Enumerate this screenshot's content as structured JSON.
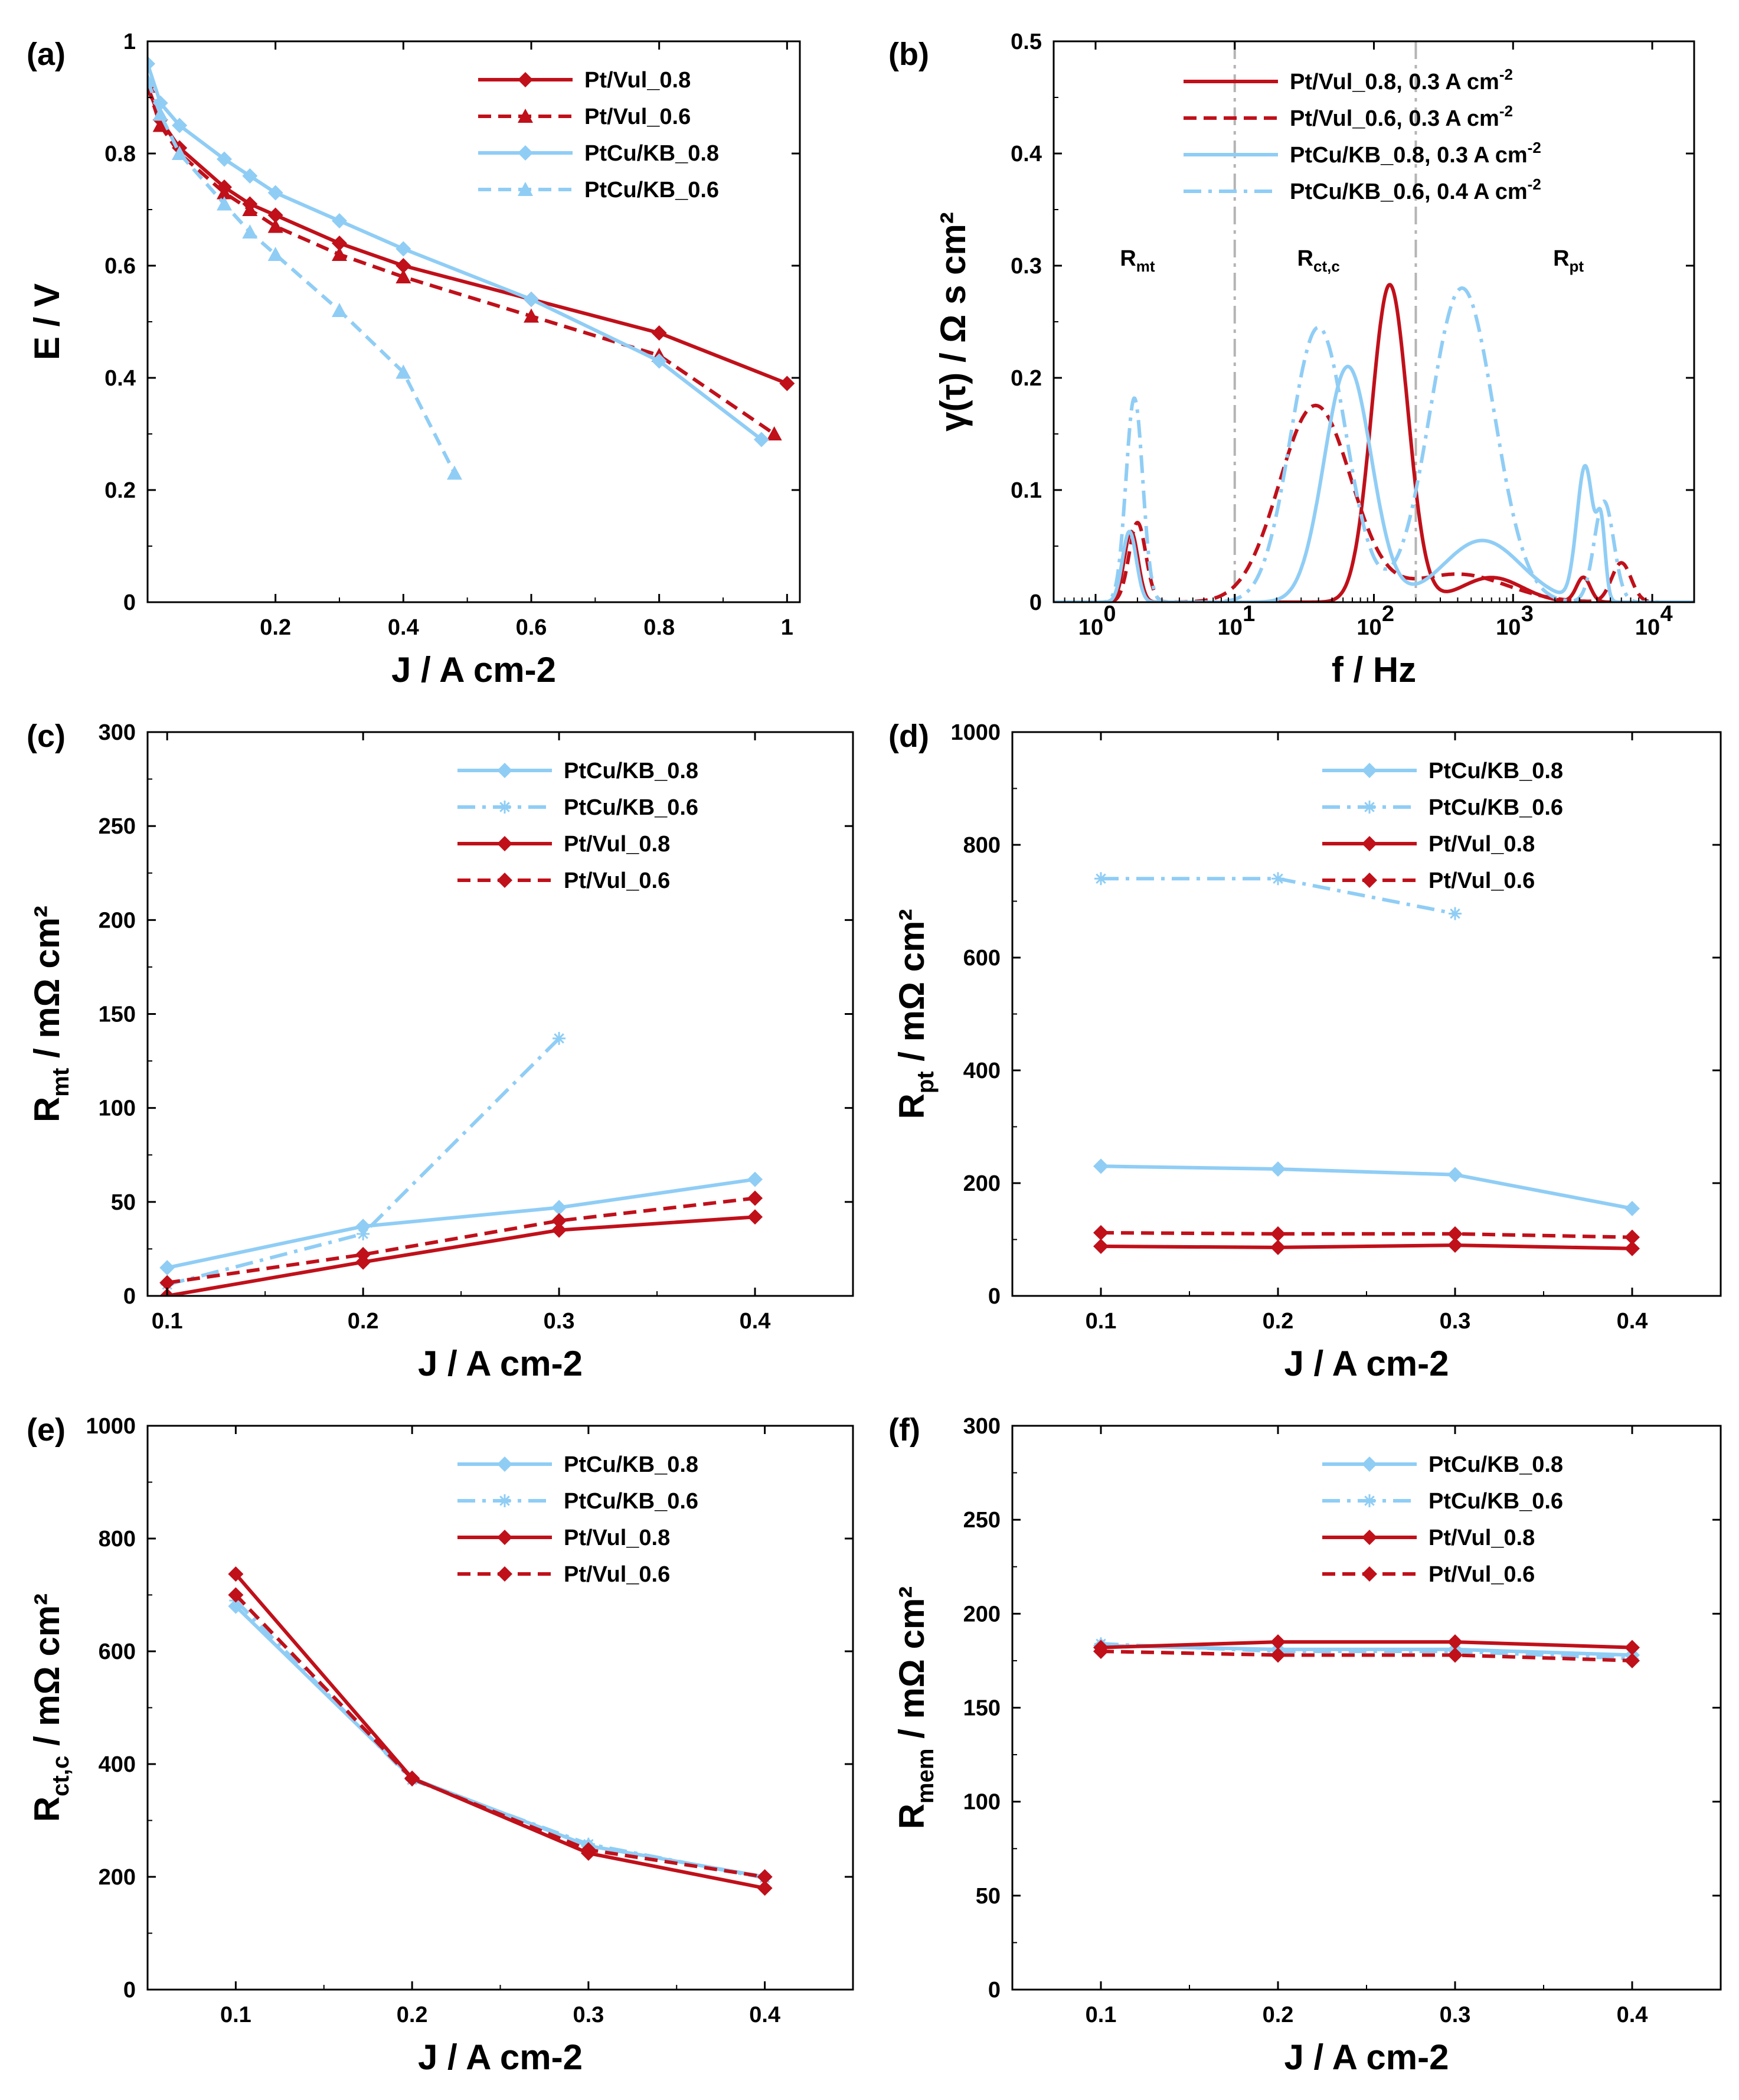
{
  "colors": {
    "red": "#c0101a",
    "blue": "#8fcdf5",
    "gray": "#b4b4b4",
    "axis": "#000000"
  },
  "chart_data": [
    {
      "id": "a",
      "type": "line",
      "panel_label": "(a)",
      "xlabel": "J / A cm-2",
      "ylabel": "E / V",
      "xlim": [
        0,
        1.02
      ],
      "ylim": [
        0,
        1
      ],
      "xticks": [
        0.2,
        0.4,
        0.6,
        0.8,
        1
      ],
      "xtick_labels": [
        "0.2",
        "0.4",
        "0.6",
        "0.8",
        "1"
      ],
      "yticks": [
        0,
        0.2,
        0.4,
        0.6,
        0.8,
        1
      ],
      "ytick_labels": [
        "0",
        "0.2",
        "0.4",
        "0.6",
        "0.8",
        "1"
      ],
      "legend_position": "top-right",
      "series": [
        {
          "name": "Pt/Vul_0.8",
          "color": "red",
          "dash": "solid",
          "marker": "diamond",
          "x": [
            0,
            0.02,
            0.05,
            0.12,
            0.16,
            0.2,
            0.3,
            0.4,
            0.6,
            0.8,
            1.0
          ],
          "y": [
            0.92,
            0.86,
            0.81,
            0.74,
            0.71,
            0.69,
            0.64,
            0.6,
            0.54,
            0.48,
            0.39
          ]
        },
        {
          "name": "Pt/Vul_0.6",
          "color": "red",
          "dash": "dash",
          "marker": "triangle",
          "x": [
            0,
            0.02,
            0.05,
            0.12,
            0.16,
            0.2,
            0.3,
            0.4,
            0.6,
            0.8,
            0.98
          ],
          "y": [
            0.92,
            0.85,
            0.8,
            0.73,
            0.7,
            0.67,
            0.62,
            0.58,
            0.51,
            0.44,
            0.3
          ]
        },
        {
          "name": "PtCu/KB_0.8",
          "color": "blue",
          "dash": "solid",
          "marker": "diamond",
          "x": [
            0,
            0.02,
            0.05,
            0.12,
            0.16,
            0.2,
            0.3,
            0.4,
            0.6,
            0.8,
            0.96
          ],
          "y": [
            0.96,
            0.89,
            0.85,
            0.79,
            0.76,
            0.73,
            0.68,
            0.63,
            0.54,
            0.43,
            0.29
          ]
        },
        {
          "name": "PtCu/KB_0.6",
          "color": "blue",
          "dash": "dash",
          "marker": "triangle",
          "x": [
            0,
            0.02,
            0.05,
            0.12,
            0.16,
            0.2,
            0.3,
            0.4,
            0.48
          ],
          "y": [
            0.93,
            0.87,
            0.8,
            0.71,
            0.66,
            0.62,
            0.52,
            0.41,
            0.23
          ]
        }
      ]
    },
    {
      "id": "b",
      "type": "line",
      "panel_label": "(b)",
      "xlabel": "f / Hz",
      "ylabel": "γ(τ) / Ω s cm²",
      "xscale": "log",
      "xlim": [
        0.5,
        20000
      ],
      "ylim": [
        0,
        0.5
      ],
      "xticks": [
        1,
        10,
        100,
        1000,
        10000
      ],
      "xtick_base": [
        "10",
        "10",
        "10",
        "10",
        "10"
      ],
      "xtick_exp": [
        "0",
        "1",
        "2",
        "3",
        "4"
      ],
      "yticks": [
        0,
        0.1,
        0.2,
        0.3,
        0.4,
        0.5
      ],
      "ytick_labels": [
        "0",
        "0.1",
        "0.2",
        "0.3",
        "0.4",
        "0.5"
      ],
      "legend_position": "top-right",
      "region_dividers": [
        10,
        200
      ],
      "region_labels": [
        {
          "text": "R",
          "sub": "mt",
          "x": 2,
          "y": 0.3
        },
        {
          "text": "R",
          "sub": "ct,c",
          "x": 40,
          "y": 0.3
        },
        {
          "text": "R",
          "sub": "pt",
          "x": 2500,
          "y": 0.3
        }
      ],
      "series": [
        {
          "name": "Pt/Vul_0.8, 0.3 A cm",
          "sup": "-2",
          "color": "red",
          "dash": "solid",
          "peaks": [
            [
              1.8,
              0.063,
              0.05
            ],
            [
              130,
              0.283,
              0.13
            ],
            [
              700,
              0.022,
              0.22
            ],
            [
              3200,
              0.022,
              0.05
            ]
          ]
        },
        {
          "name": "Pt/Vul_0.6, 0.3 A cm",
          "sup": "-2",
          "color": "red",
          "dash": "dash",
          "peaks": [
            [
              2.0,
              0.071,
              0.06
            ],
            [
              38,
              0.175,
              0.26
            ],
            [
              400,
              0.025,
              0.35
            ],
            [
              6000,
              0.035,
              0.07
            ]
          ]
        },
        {
          "name": "PtCu/KB_0.8, 0.3 A cm",
          "sup": "-2",
          "color": "blue",
          "dash": "solid",
          "peaks": [
            [
              1.75,
              0.063,
              0.05
            ],
            [
              65,
              0.21,
              0.17
            ],
            [
              600,
              0.055,
              0.28
            ],
            [
              3300,
              0.12,
              0.06
            ],
            [
              4300,
              0.06,
              0.03
            ]
          ]
        },
        {
          "name": "PtCu/KB_0.6, 0.4 A cm",
          "sup": "-2",
          "color": "blue",
          "dash": "dashdot",
          "peaks": [
            [
              1.9,
              0.182,
              0.06
            ],
            [
              40,
              0.245,
              0.2
            ],
            [
              430,
              0.28,
              0.23
            ],
            [
              4500,
              0.09,
              0.07
            ]
          ]
        }
      ]
    },
    {
      "id": "c",
      "type": "line",
      "panel_label": "(c)",
      "xlabel": "J / A cm-2",
      "ylabel": "R",
      "ylabel_sub": "mt",
      "ylabel_rest": " / mΩ cm²",
      "xlim": [
        0.09,
        0.45
      ],
      "ylim": [
        0,
        300
      ],
      "xticks": [
        0.1,
        0.2,
        0.3,
        0.4
      ],
      "xtick_labels": [
        "0.1",
        "0.2",
        "0.3",
        "0.4"
      ],
      "yticks": [
        0,
        50,
        100,
        150,
        200,
        250,
        300
      ],
      "ytick_labels": [
        "0",
        "50",
        "100",
        "150",
        "200",
        "250",
        "300"
      ],
      "legend_position": "top-right",
      "series": [
        {
          "name": "PtCu/KB_0.8",
          "color": "blue",
          "dash": "solid",
          "marker": "diamond",
          "x": [
            0.1,
            0.2,
            0.3,
            0.4
          ],
          "y": [
            15,
            37,
            47,
            62
          ]
        },
        {
          "name": "PtCu/KB_0.6",
          "color": "blue",
          "dash": "dashdot",
          "marker": "star",
          "x": [
            0.1,
            0.2,
            0.3
          ],
          "y": [
            6,
            33,
            137
          ]
        },
        {
          "name": "Pt/Vul_0.8",
          "color": "red",
          "dash": "solid",
          "marker": "diamond",
          "x": [
            0.1,
            0.2,
            0.3,
            0.4
          ],
          "y": [
            0,
            18,
            35,
            42
          ]
        },
        {
          "name": "Pt/Vul_0.6",
          "color": "red",
          "dash": "dash",
          "marker": "diamond",
          "x": [
            0.1,
            0.2,
            0.3,
            0.4
          ],
          "y": [
            7,
            22,
            40,
            52
          ]
        }
      ]
    },
    {
      "id": "d",
      "type": "line",
      "panel_label": "(d)",
      "xlabel": "J / A cm-2",
      "ylabel": "R",
      "ylabel_sub": "pt",
      "ylabel_rest": " / mΩ cm²",
      "xlim": [
        0.05,
        0.45
      ],
      "ylim": [
        0,
        1000
      ],
      "xticks": [
        0.1,
        0.2,
        0.3,
        0.4
      ],
      "xtick_labels": [
        "0.1",
        "0.2",
        "0.3",
        "0.4"
      ],
      "yticks": [
        0,
        200,
        400,
        600,
        800,
        1000
      ],
      "ytick_labels": [
        "0",
        "200",
        "400",
        "600",
        "800",
        "1000"
      ],
      "legend_position": "top-right",
      "series": [
        {
          "name": "PtCu/KB_0.8",
          "color": "blue",
          "dash": "solid",
          "marker": "diamond",
          "x": [
            0.1,
            0.2,
            0.3,
            0.4
          ],
          "y": [
            230,
            225,
            215,
            155
          ]
        },
        {
          "name": "PtCu/KB_0.6",
          "color": "blue",
          "dash": "dashdot",
          "marker": "star",
          "x": [
            0.1,
            0.2,
            0.3
          ],
          "y": [
            740,
            740,
            678
          ]
        },
        {
          "name": "Pt/Vul_0.8",
          "color": "red",
          "dash": "solid",
          "marker": "diamond",
          "x": [
            0.1,
            0.2,
            0.3,
            0.4
          ],
          "y": [
            88,
            86,
            90,
            84
          ]
        },
        {
          "name": "Pt/Vul_0.6",
          "color": "red",
          "dash": "dash",
          "marker": "diamond",
          "x": [
            0.1,
            0.2,
            0.3,
            0.4
          ],
          "y": [
            112,
            110,
            110,
            104
          ]
        }
      ]
    },
    {
      "id": "e",
      "type": "line",
      "panel_label": "(e)",
      "xlabel": "J / A cm-2",
      "ylabel": "R",
      "ylabel_sub": "ct,c",
      "ylabel_rest": " / mΩ cm²",
      "xlim": [
        0.05,
        0.45
      ],
      "ylim": [
        0,
        1000
      ],
      "xticks": [
        0.1,
        0.2,
        0.3,
        0.4
      ],
      "xtick_labels": [
        "0.1",
        "0.2",
        "0.3",
        "0.4"
      ],
      "yticks": [
        0,
        200,
        400,
        600,
        800,
        1000
      ],
      "ytick_labels": [
        "0",
        "200",
        "400",
        "600",
        "800",
        "1000"
      ],
      "legend_position": "top-right",
      "series": [
        {
          "name": "PtCu/KB_0.8",
          "color": "blue",
          "dash": "solid",
          "marker": "diamond",
          "x": [
            0.1,
            0.2,
            0.3,
            0.4
          ],
          "y": [
            680,
            375,
            255,
            200
          ]
        },
        {
          "name": "PtCu/KB_0.6",
          "color": "blue",
          "dash": "dashdot",
          "marker": "star",
          "x": [
            0.1,
            0.2,
            0.3,
            0.4
          ],
          "y": [
            690,
            372,
            258,
            198
          ]
        },
        {
          "name": "Pt/Vul_0.8",
          "color": "red",
          "dash": "solid",
          "marker": "diamond",
          "x": [
            0.1,
            0.2,
            0.3,
            0.4
          ],
          "y": [
            737,
            375,
            242,
            180
          ]
        },
        {
          "name": "Pt/Vul_0.6",
          "color": "red",
          "dash": "dash",
          "marker": "diamond",
          "x": [
            0.1,
            0.2,
            0.3,
            0.4
          ],
          "y": [
            700,
            374,
            248,
            200
          ]
        }
      ]
    },
    {
      "id": "f",
      "type": "line",
      "panel_label": "(f)",
      "xlabel": "J / A cm-2",
      "ylabel": "R",
      "ylabel_sub": "mem",
      "ylabel_rest": " / mΩ cm²",
      "xlim": [
        0.05,
        0.45
      ],
      "ylim": [
        0,
        300
      ],
      "xticks": [
        0.1,
        0.2,
        0.3,
        0.4
      ],
      "xtick_labels": [
        "0.1",
        "0.2",
        "0.3",
        "0.4"
      ],
      "yticks": [
        0,
        50,
        100,
        150,
        200,
        250,
        300
      ],
      "ytick_labels": [
        "0",
        "50",
        "100",
        "150",
        "200",
        "250",
        "300"
      ],
      "legend_position": "top-right",
      "series": [
        {
          "name": "PtCu/KB_0.8",
          "color": "blue",
          "dash": "solid",
          "marker": "diamond",
          "x": [
            0.1,
            0.2,
            0.3,
            0.4
          ],
          "y": [
            183,
            181,
            181,
            178
          ]
        },
        {
          "name": "PtCu/KB_0.6",
          "color": "blue",
          "dash": "dashdot",
          "marker": "star",
          "x": [
            0.1,
            0.2,
            0.3,
            0.4
          ],
          "y": [
            184,
            180,
            180,
            176
          ]
        },
        {
          "name": "Pt/Vul_0.8",
          "color": "red",
          "dash": "solid",
          "marker": "diamond",
          "x": [
            0.1,
            0.2,
            0.3,
            0.4
          ],
          "y": [
            182,
            185,
            185,
            182
          ]
        },
        {
          "name": "Pt/Vul_0.6",
          "color": "red",
          "dash": "dash",
          "marker": "diamond",
          "x": [
            0.1,
            0.2,
            0.3,
            0.4
          ],
          "y": [
            180,
            178,
            178,
            175
          ]
        }
      ]
    }
  ]
}
